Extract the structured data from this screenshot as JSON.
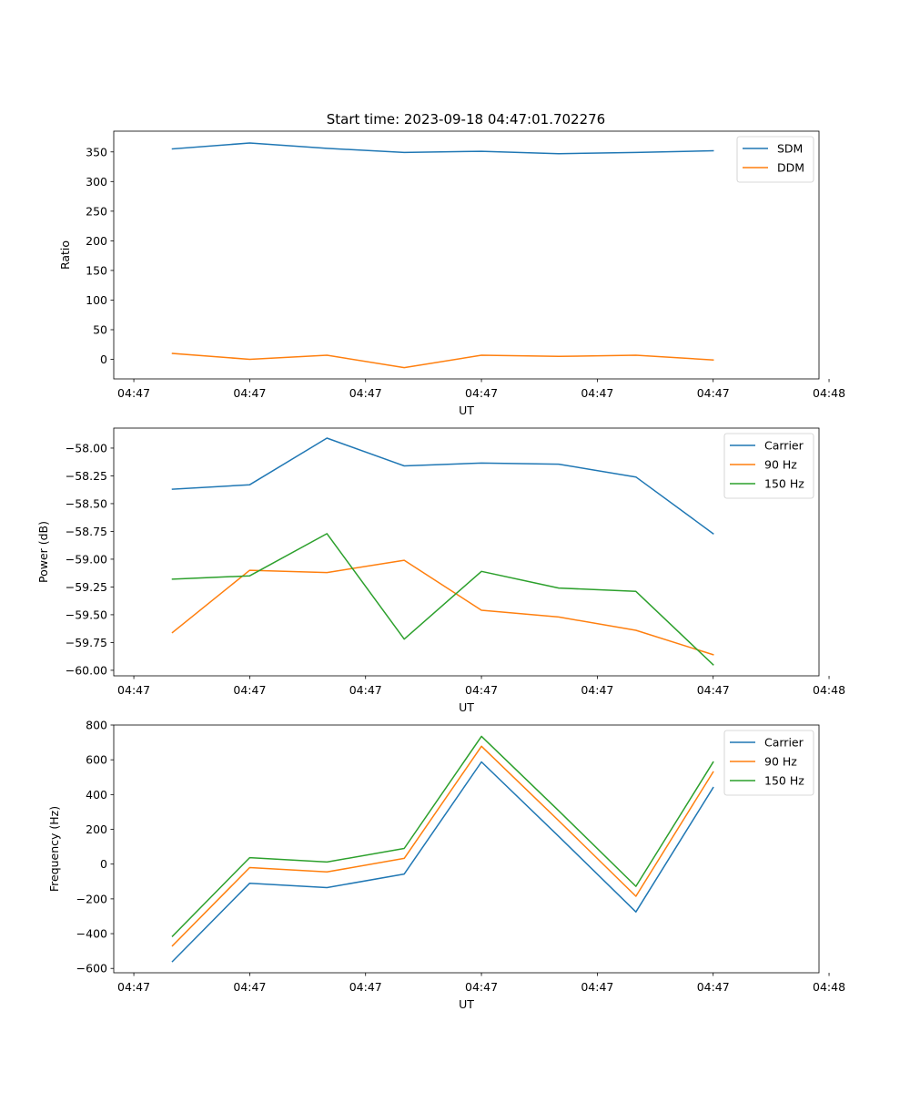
{
  "figure_title": "Start time: 2023-09-18 04:47:01.702276",
  "colors": {
    "blue": "#1f77b4",
    "orange": "#ff7f0e",
    "green": "#2ca02c"
  },
  "chart_data": [
    {
      "type": "line",
      "title": "Start time: 2023-09-18 04:47:01.702276",
      "xlabel": "UT",
      "ylabel": "Ratio",
      "x": [
        1,
        2,
        3,
        4,
        5,
        6,
        7,
        8
      ],
      "xlim": [
        0.24,
        9.37
      ],
      "xticks": [
        0.5,
        2,
        3.5,
        5,
        6.5,
        8,
        9.5
      ],
      "xtick_labels": [
        "04:47",
        "04:47",
        "04:47",
        "04:47",
        "04:47",
        "04:47",
        "04:48"
      ],
      "ylim": [
        -33,
        385
      ],
      "yticks": [
        0,
        50,
        100,
        150,
        200,
        250,
        300,
        350
      ],
      "ytick_labels": [
        "0",
        "50",
        "100",
        "150",
        "200",
        "250",
        "300",
        "350"
      ],
      "legend_loc": "top-right",
      "series": [
        {
          "name": "SDM",
          "color": "#1f77b4",
          "values": [
            355,
            365,
            356,
            349,
            351,
            347,
            349,
            352
          ]
        },
        {
          "name": "DDM",
          "color": "#ff7f0e",
          "values": [
            10,
            0,
            7,
            -14,
            7,
            5,
            7,
            -1
          ]
        }
      ]
    },
    {
      "type": "line",
      "title": "",
      "xlabel": "UT",
      "ylabel": "Power (dB)",
      "x": [
        1,
        2,
        3,
        4,
        5,
        6,
        7,
        8
      ],
      "xlim": [
        0.24,
        9.37
      ],
      "xticks": [
        0.5,
        2,
        3.5,
        5,
        6.5,
        8,
        9.5
      ],
      "xtick_labels": [
        "04:47",
        "04:47",
        "04:47",
        "04:47",
        "04:47",
        "04:47",
        "04:48"
      ],
      "ylim": [
        -60.05,
        -57.82
      ],
      "yticks": [
        -60.0,
        -59.75,
        -59.5,
        -59.25,
        -59.0,
        -58.75,
        -58.5,
        -58.25,
        -58.0
      ],
      "ytick_labels": [
        "−60.00",
        "−59.75",
        "−59.50",
        "−59.25",
        "−59.00",
        "−58.75",
        "−58.50",
        "−58.25",
        "−58.00"
      ],
      "legend_loc": "top-right",
      "series": [
        {
          "name": "Carrier",
          "color": "#1f77b4",
          "values": [
            -58.37,
            -58.33,
            -57.91,
            -58.16,
            -58.135,
            -58.145,
            -58.26,
            -58.77
          ]
        },
        {
          "name": "90 Hz",
          "color": "#ff7f0e",
          "values": [
            -59.66,
            -59.1,
            -59.12,
            -59.01,
            -59.46,
            -59.52,
            -59.64,
            -59.86
          ]
        },
        {
          "name": "150 Hz",
          "color": "#2ca02c",
          "values": [
            -59.18,
            -59.15,
            -58.77,
            -59.72,
            -59.11,
            -59.26,
            -59.29,
            -59.95
          ]
        }
      ]
    },
    {
      "type": "line",
      "title": "",
      "xlabel": "UT",
      "ylabel": "Frequency (Hz)",
      "x": [
        1,
        2,
        3,
        4,
        5,
        6,
        7,
        8
      ],
      "xlim": [
        0.24,
        9.37
      ],
      "xticks": [
        0.5,
        2,
        3.5,
        5,
        6.5,
        8,
        9.5
      ],
      "xtick_labels": [
        "04:47",
        "04:47",
        "04:47",
        "04:47",
        "04:47",
        "04:47",
        "04:48"
      ],
      "ylim": [
        -625,
        800
      ],
      "yticks": [
        -600,
        -400,
        -200,
        0,
        200,
        400,
        600,
        800
      ],
      "ytick_labels": [
        "−600",
        "−400",
        "−200",
        "0",
        "200",
        "400",
        "600",
        "800"
      ],
      "legend_loc": "top-right",
      "series": [
        {
          "name": "Carrier",
          "color": "#1f77b4",
          "values": [
            -560,
            -110,
            -135,
            -57,
            588,
            160,
            -275,
            440
          ]
        },
        {
          "name": "90 Hz",
          "color": "#ff7f0e",
          "values": [
            -470,
            -20,
            -45,
            33,
            678,
            250,
            -185,
            530
          ]
        },
        {
          "name": "150 Hz",
          "color": "#2ca02c",
          "values": [
            -415,
            37,
            12,
            90,
            735,
            307,
            -128,
            587
          ]
        }
      ]
    }
  ]
}
